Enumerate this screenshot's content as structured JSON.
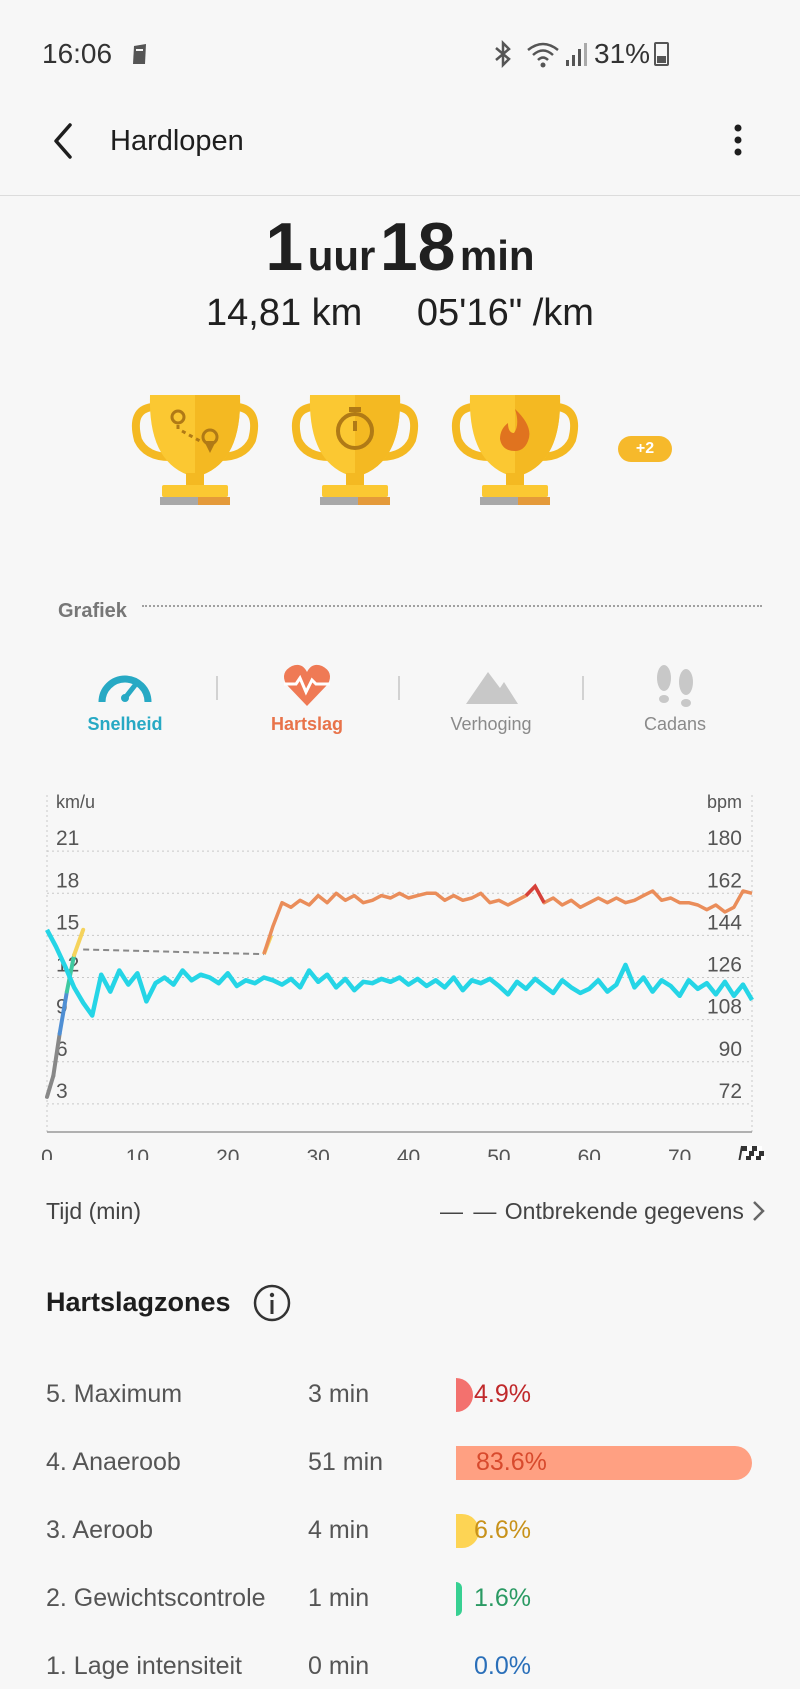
{
  "status_bar": {
    "time": "16:06",
    "battery": "31%"
  },
  "header": {
    "title": "Hardlopen"
  },
  "summary": {
    "hours_value": "1",
    "hours_unit": "uur",
    "minutes_value": "18",
    "minutes_unit": "min",
    "distance": "14,81 km",
    "pace": "05'16\" /km"
  },
  "achievements": {
    "more_badge": "+2",
    "trophies": [
      "route-trophy",
      "stopwatch-trophy",
      "fire-trophy"
    ]
  },
  "graph_section": {
    "label": "Grafiek"
  },
  "tabs": [
    {
      "label": "Snelheid",
      "color": "#27a9c4"
    },
    {
      "label": "Hartslag",
      "color": "#e8734a"
    },
    {
      "label": "Verhoging",
      "color": "#8a8a8a"
    },
    {
      "label": "Cadans",
      "color": "#8a8a8a"
    }
  ],
  "chart_data": {
    "type": "line",
    "left_axis_unit": "km/u",
    "right_axis_unit": "bpm",
    "left_ticks": [
      "21",
      "18",
      "15",
      "12",
      "9",
      "6",
      "3"
    ],
    "right_ticks": [
      "180",
      "162",
      "144",
      "126",
      "108",
      "90",
      "72"
    ],
    "x_ticks": [
      "0",
      "10",
      "20",
      "30",
      "40",
      "50",
      "60",
      "70"
    ],
    "xlim": [
      0,
      78
    ],
    "ylim_left": [
      0,
      24
    ],
    "ylim_right": [
      54,
      198
    ],
    "xlabel": "Tijd (min)",
    "missing_data_label": "Ontbrekende gegevens",
    "series": [
      {
        "key": "speed",
        "axis": "left",
        "color": "#25d5e6",
        "x": [
          0,
          1,
          2,
          3,
          4,
          5,
          6,
          7,
          8,
          9,
          10,
          11,
          12,
          13,
          14,
          15,
          16,
          17,
          18,
          19,
          20,
          21,
          22,
          23,
          24,
          25,
          26,
          27,
          28,
          29,
          30,
          31,
          32,
          33,
          34,
          35,
          36,
          37,
          38,
          39,
          40,
          41,
          42,
          43,
          44,
          45,
          46,
          47,
          48,
          49,
          50,
          51,
          52,
          53,
          54,
          55,
          56,
          57,
          58,
          59,
          60,
          61,
          62,
          63,
          64,
          65,
          66,
          67,
          68,
          69,
          70,
          71,
          72,
          73,
          74,
          75,
          76,
          77,
          78
        ],
        "y": [
          14.4,
          13.2,
          11.8,
          10.3,
          9.2,
          8.3,
          11.2,
          10.0,
          11.5,
          10.5,
          11.3,
          9.3,
          10.6,
          11.0,
          10.5,
          11.5,
          10.8,
          11.2,
          11.0,
          10.6,
          11.3,
          10.4,
          10.8,
          10.6,
          11.0,
          10.8,
          10.5,
          10.9,
          10.3,
          11.5,
          10.7,
          11.2,
          10.3,
          10.9,
          10.1,
          10.7,
          10.6,
          10.9,
          10.7,
          11.0,
          10.5,
          10.9,
          10.4,
          10.8,
          10.3,
          11.0,
          10.1,
          10.8,
          10.6,
          10.9,
          10.4,
          9.8,
          10.7,
          10.2,
          10.9,
          10.4,
          9.9,
          10.8,
          10.3,
          9.9,
          10.2,
          10.8,
          10.0,
          10.5,
          11.9,
          10.3,
          11.0,
          10.0,
          10.8,
          10.4,
          9.7,
          10.8,
          10.2,
          10.6,
          9.8,
          10.7,
          9.7,
          10.5,
          9.4
        ]
      },
      {
        "key": "heart_rate",
        "axis": "right",
        "color": "#ea8d5a",
        "x": [
          24,
          25,
          26,
          27,
          28,
          29,
          30,
          31,
          32,
          33,
          34,
          35,
          36,
          37,
          38,
          39,
          40,
          41,
          42,
          43,
          44,
          45,
          46,
          47,
          48,
          49,
          50,
          51,
          52,
          53,
          54,
          55,
          56,
          57,
          58,
          59,
          60,
          61,
          62,
          63,
          64,
          65,
          66,
          67,
          68,
          69,
          70,
          71,
          72,
          73,
          74,
          75,
          76,
          77,
          78
        ],
        "y": [
          130,
          142,
          152,
          150,
          153,
          151,
          155,
          152,
          156,
          153,
          155,
          152,
          153,
          155,
          154,
          156,
          154,
          155,
          156,
          156,
          153,
          155,
          153,
          154,
          156,
          152,
          153,
          151,
          153,
          155,
          159,
          152,
          154,
          151,
          153,
          150,
          152,
          154,
          152,
          154,
          152,
          153,
          155,
          157,
          153,
          154,
          152,
          152,
          151,
          149,
          151,
          148,
          150,
          157,
          156
        ]
      }
    ],
    "missing_segment": {
      "x": [
        4,
        24
      ],
      "bpm": [
        132,
        130
      ]
    },
    "start_segment": {
      "x": [
        0,
        0.7,
        1.4,
        2.2,
        3.0,
        4.0
      ],
      "y": [
        2.5,
        4.0,
        7.0,
        10.0,
        12.6,
        14.4
      ],
      "colors": [
        "#888888",
        "#888888",
        "#4f8fd4",
        "#3fc9a0",
        "#f5d35c"
      ]
    }
  },
  "heart_zones": {
    "title": "Hartslagzones",
    "rows": [
      {
        "name": "5. Maximum",
        "time": "3 min",
        "percent": "4.9%",
        "value": 4.9,
        "bar_color": "#f3716e",
        "text_color": "#c0292b"
      },
      {
        "name": "4. Anaeroob",
        "time": "51 min",
        "percent": "83.6%",
        "value": 83.6,
        "bar_color": "#ffa082",
        "text_color": "#d84a2d"
      },
      {
        "name": "3. Aeroob",
        "time": "4 min",
        "percent": "6.6%",
        "value": 6.6,
        "bar_color": "#fdd454",
        "text_color": "#c8921a"
      },
      {
        "name": "2. Gewichtscontrole",
        "time": "1 min",
        "percent": "1.6%",
        "value": 1.6,
        "bar_color": "#37d092",
        "text_color": "#2a9a63"
      },
      {
        "name": "1. Lage intensiteit",
        "time": "0 min",
        "percent": "0.0%",
        "value": 0.0,
        "bar_color": "#4aa1e5",
        "text_color": "#2a6fb9"
      }
    ]
  }
}
